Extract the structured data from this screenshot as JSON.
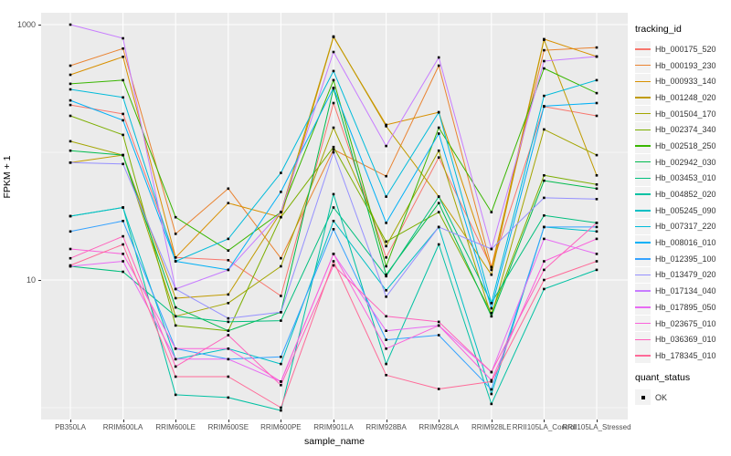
{
  "axes": {
    "y_title": "FPKM + 1",
    "x_title": "sample_name",
    "y_ticks": [
      {
        "label": "1000",
        "value": 1000
      },
      {
        "label": "10",
        "value": 10
      }
    ]
  },
  "legend": {
    "tracking_title": "tracking_id",
    "quant_title": "quant_status",
    "quant_items": [
      {
        "label": "OK"
      }
    ]
  },
  "colors": {
    "panel_bg": "#EBEBEB",
    "gridline": "#FFFFFF",
    "tick_text": "#4D4D4D",
    "point": "#000000",
    "key_bg": "#F2F2F2"
  },
  "chart_data": {
    "type": "line",
    "title": "",
    "xlabel": "sample_name",
    "ylabel": "FPKM + 1",
    "y_scale": "log10",
    "ylim": [
      0.8,
      1250
    ],
    "y_major_breaks": [
      10,
      1000
    ],
    "y_minor_breaks": [
      1,
      100
    ],
    "grid": "on",
    "legend_position": "right",
    "point_style": "small black square",
    "quant_status": "OK",
    "categories": [
      "PB350LA",
      "RRIM600LA",
      "RRIM600LE",
      "RRIM600SE",
      "RRIM600PE",
      "RRIM901LA",
      "RRIM928BA",
      "RRIM928LA",
      "RRIM928LE",
      "RRII105LA_Control",
      "RRII105LA_Stressed"
    ],
    "series": [
      {
        "name": "Hb_000175_520",
        "color": "#F8766D",
        "values": [
          235,
          200,
          15,
          14.3,
          7.5,
          243,
          15,
          91,
          12.6,
          228,
          193
        ]
      },
      {
        "name": "Hb_000193_230",
        "color": "#EA8331",
        "values": [
          477,
          650,
          23,
          52,
          14.8,
          105,
          65,
          477,
          12.6,
          630,
          662
        ]
      },
      {
        "name": "Hb_000933_140",
        "color": "#D89000",
        "values": [
          405,
          560,
          15,
          40,
          31,
          800,
          164,
          206,
          12,
          770,
          562
        ]
      },
      {
        "name": "Hb_001248_020",
        "color": "#C09B00",
        "values": [
          83,
          95,
          7.2,
          7.7,
          34,
          808,
          160,
          45,
          11,
          760,
          66
        ]
      },
      {
        "name": "Hb_001504_170",
        "color": "#A3A500",
        "values": [
          122,
          95,
          5.2,
          6.6,
          12.8,
          156,
          18.4,
          103,
          5.2,
          151,
          95
        ]
      },
      {
        "name": "Hb_002374_340",
        "color": "#7CAE00",
        "values": [
          193,
          137,
          4.4,
          4.0,
          31,
          110,
          20,
          34,
          5.5,
          66,
          56
        ]
      },
      {
        "name": "Hb_002518_250",
        "color": "#39B600",
        "values": [
          344,
          367,
          31,
          17,
          34,
          367,
          12.8,
          156,
          34,
          454,
          291
        ]
      },
      {
        "name": "Hb_002942_030",
        "color": "#00BB4E",
        "values": [
          103,
          95,
          6.1,
          4.0,
          5.6,
          316,
          11,
          40,
          5.2,
          60,
          52
        ]
      },
      {
        "name": "Hb_003453_010",
        "color": "#00BF7D",
        "values": [
          12.8,
          11.6,
          5.2,
          4.7,
          4.8,
          37,
          10.7,
          45,
          6.6,
          32,
          28
        ]
      },
      {
        "name": "Hb_004852_020",
        "color": "#00C1A3",
        "values": [
          31.6,
          37,
          1.26,
          1.2,
          0.95,
          47,
          2.2,
          19,
          1.07,
          8.5,
          12
        ]
      },
      {
        "name": "Hb_005245_090",
        "color": "#00BFC4",
        "values": [
          31.6,
          37,
          2.4,
          2.9,
          2.2,
          29,
          8.3,
          26,
          1.28,
          26,
          24
        ]
      },
      {
        "name": "Hb_007317_220",
        "color": "#00BBDA",
        "values": [
          311,
          269,
          14,
          21,
          69,
          433,
          45,
          206,
          6.6,
          277,
          367
        ]
      },
      {
        "name": "Hb_008016_010",
        "color": "#00B0F6",
        "values": [
          255,
          178,
          14,
          12,
          49,
          320,
          28,
          140,
          6.0,
          230,
          243
        ]
      },
      {
        "name": "Hb_012395_100",
        "color": "#35A2FF",
        "values": [
          24,
          29,
          2.9,
          2.4,
          2.5,
          25,
          3.4,
          3.7,
          1.39,
          26,
          26
        ]
      },
      {
        "name": "Hb_013479_020",
        "color": "#9590FF",
        "values": [
          83,
          81,
          8.5,
          5.0,
          5.6,
          100,
          7.4,
          26,
          17.5,
          44,
          43
        ]
      },
      {
        "name": "Hb_017134_040",
        "color": "#C77CFF",
        "values": [
          1000,
          781,
          8.5,
          12,
          34,
          611,
          112,
          553,
          17.5,
          518,
          562
        ]
      },
      {
        "name": "Hb_017895_050",
        "color": "#E76BF3",
        "values": [
          12.8,
          14,
          2.4,
          2.4,
          1.6,
          16,
          4.0,
          4.4,
          1.9,
          21,
          16
        ]
      },
      {
        "name": "Hb_023675_010",
        "color": "#FA62DB",
        "values": [
          17.5,
          16,
          2.9,
          2.9,
          1.6,
          16,
          2.9,
          4.4,
          1.64,
          14,
          21
        ]
      },
      {
        "name": "Hb_036369_010",
        "color": "#FF62BC",
        "values": [
          14.8,
          22,
          2.1,
          3.7,
          1.5,
          13,
          5.2,
          4.7,
          1.9,
          12,
          28
        ]
      },
      {
        "name": "Hb_178345_010",
        "color": "#FF6A98",
        "values": [
          13,
          19,
          1.75,
          1.75,
          1.0,
          14,
          1.8,
          1.4,
          1.6,
          10,
          14
        ]
      }
    ]
  }
}
